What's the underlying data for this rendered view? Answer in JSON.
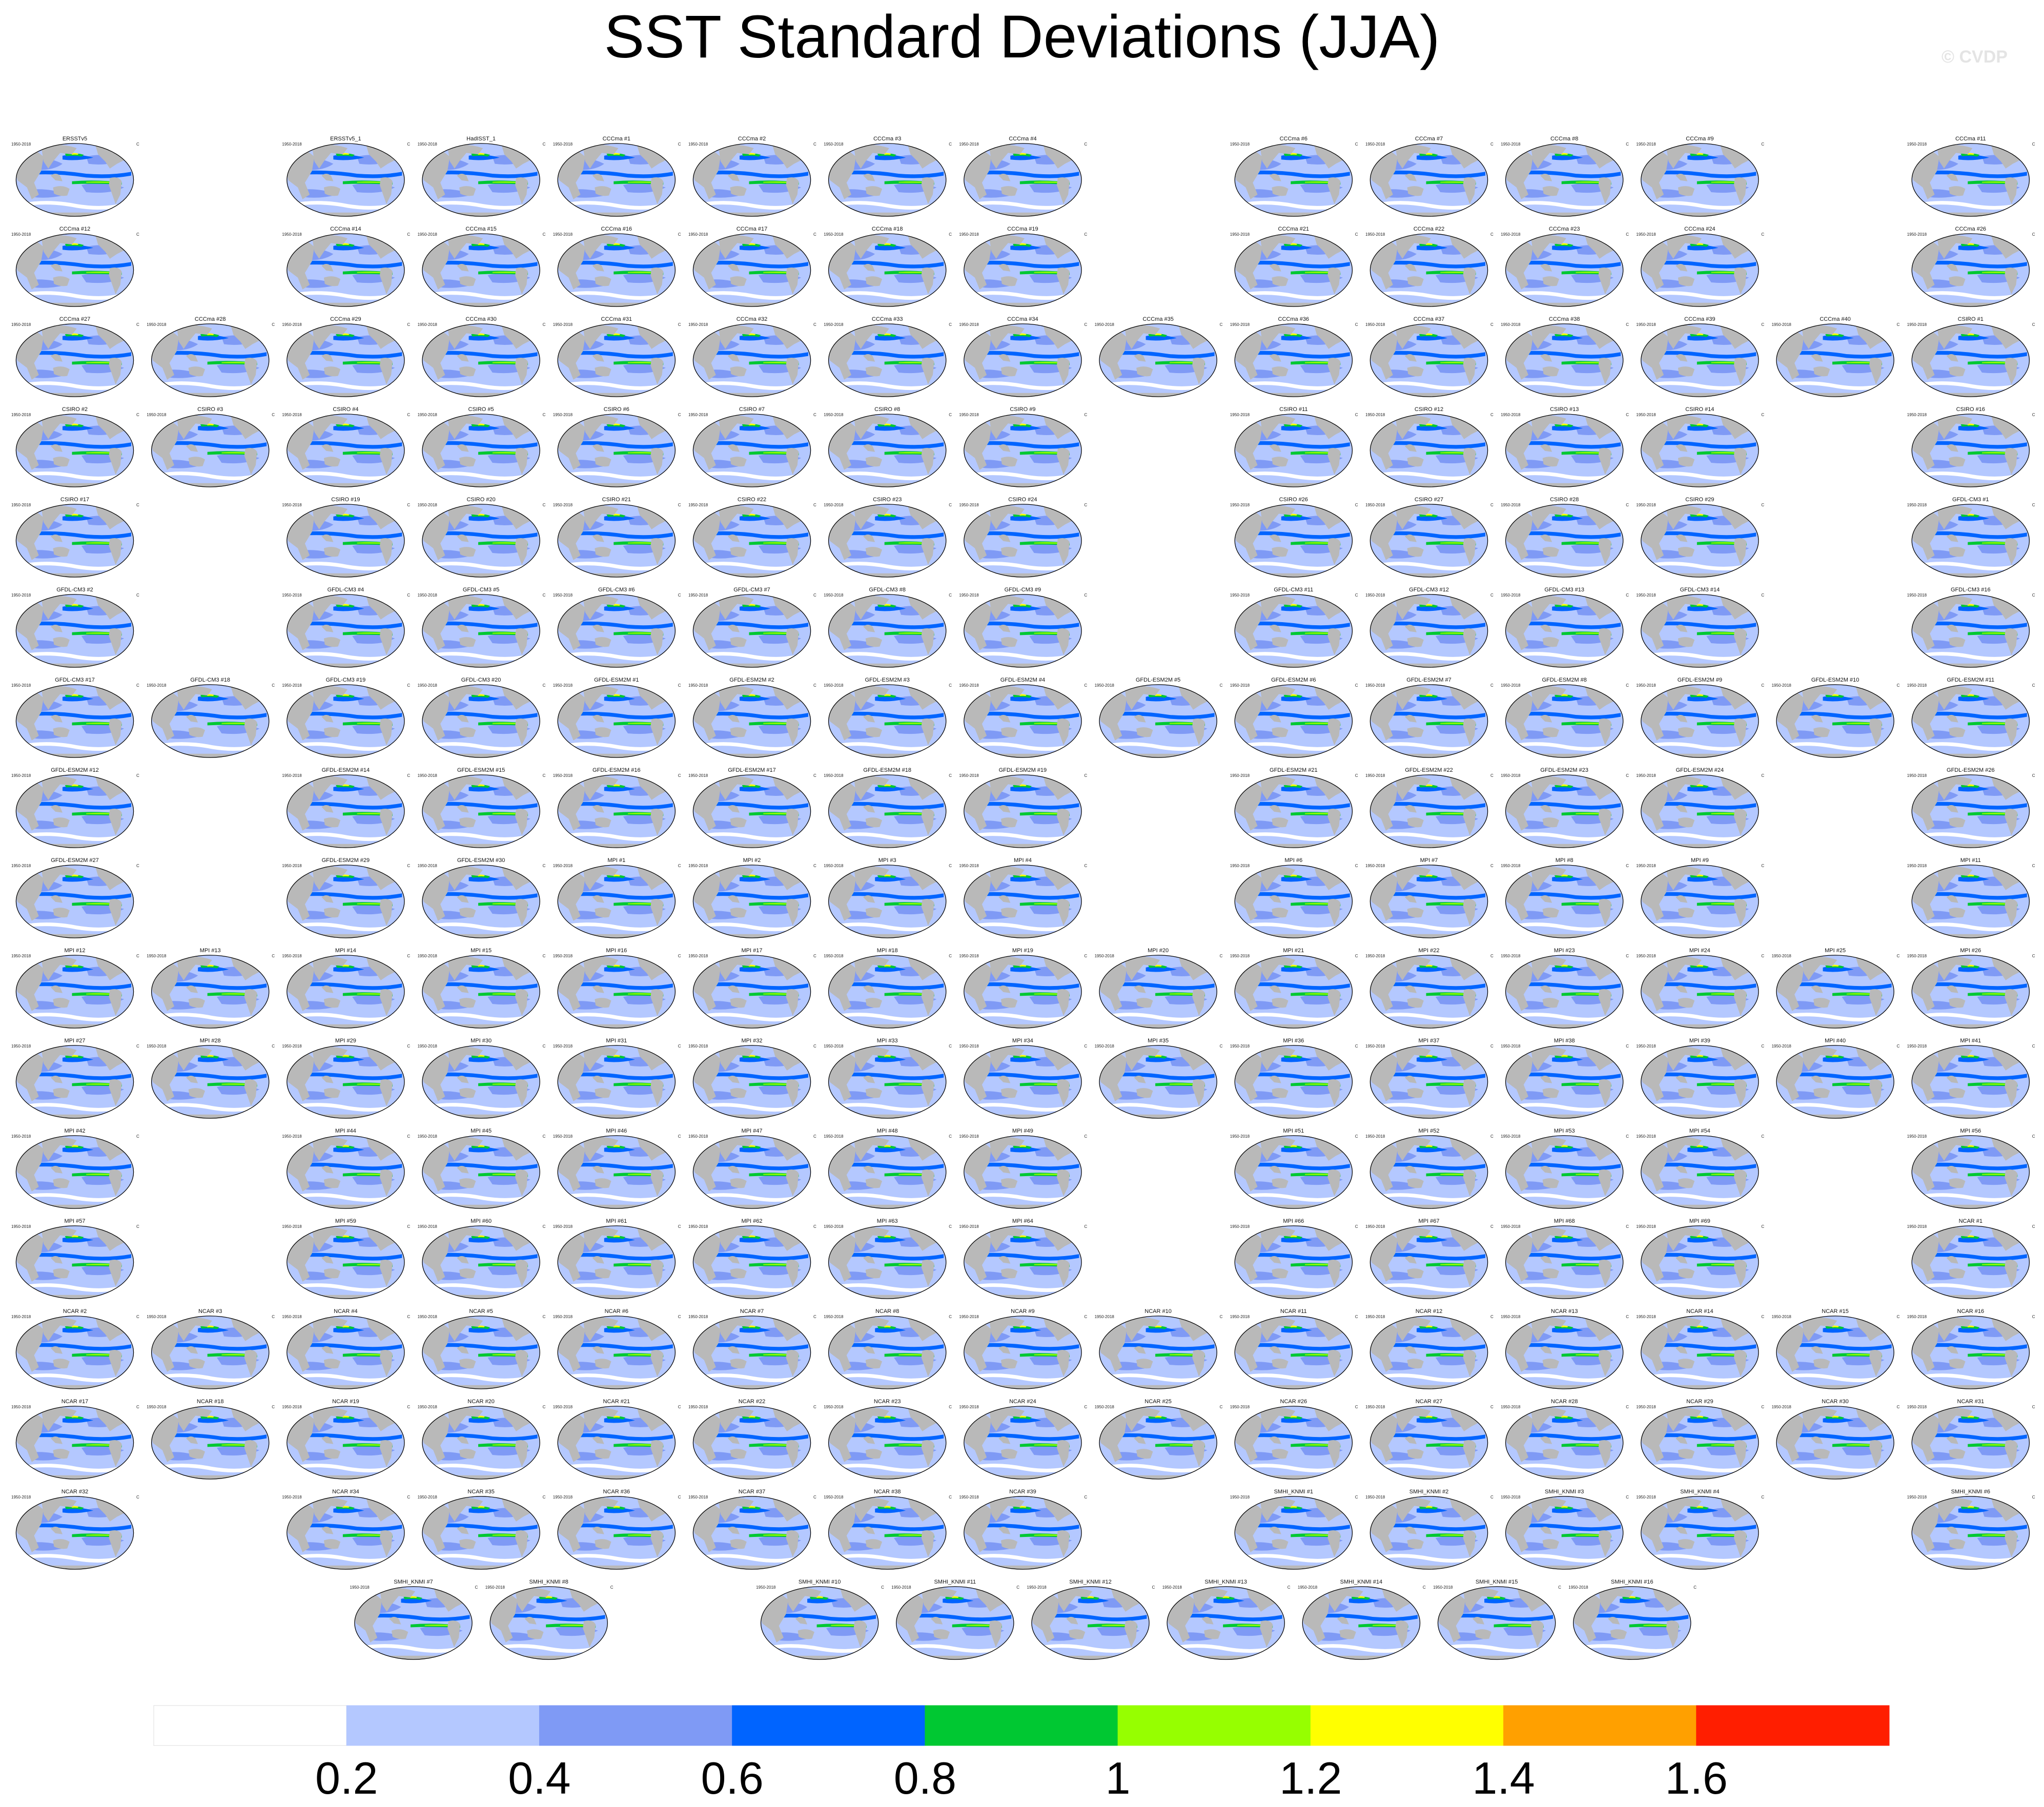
{
  "title": "SST Standard Deviations (JJA)",
  "watermark": "© CVDP",
  "chart_data": {
    "type": "heatmap",
    "title": "SST Standard Deviations (JJA)",
    "projection": "global map, Robinson-like ellipse, Pacific-centered",
    "units_label": "C",
    "panel_grid": {
      "columns": 15,
      "rows": [
        [
          0,
          2,
          3,
          4,
          5,
          6,
          7,
          9,
          10,
          11,
          12,
          14
        ],
        [
          0,
          2,
          3,
          4,
          5,
          6,
          7,
          9,
          10,
          11,
          12,
          14
        ],
        [
          0,
          1,
          2,
          3,
          4,
          5,
          6,
          7,
          8,
          9,
          10,
          11,
          12,
          13,
          14
        ],
        [
          0,
          1,
          2,
          3,
          4,
          5,
          6,
          7,
          9,
          10,
          11,
          12,
          14
        ],
        [
          0,
          2,
          3,
          4,
          5,
          6,
          7,
          9,
          10,
          11,
          12,
          14
        ],
        [
          0,
          2,
          3,
          4,
          5,
          6,
          7,
          9,
          10,
          11,
          12,
          14
        ],
        [
          0,
          1,
          2,
          3,
          4,
          5,
          6,
          7,
          8,
          9,
          10,
          11,
          12,
          13,
          14
        ],
        [
          0,
          2,
          3,
          4,
          5,
          6,
          7,
          9,
          10,
          11,
          12,
          14
        ],
        [
          0,
          2,
          3,
          4,
          5,
          6,
          7,
          9,
          10,
          11,
          12,
          14
        ],
        [
          0,
          1,
          2,
          3,
          4,
          5,
          6,
          7,
          8,
          9,
          10,
          11,
          12,
          13,
          14
        ],
        [
          0,
          1,
          2,
          3,
          4,
          5,
          6,
          7,
          8,
          9,
          10,
          11,
          12,
          13,
          14
        ],
        [
          0,
          2,
          3,
          4,
          5,
          6,
          7,
          9,
          10,
          11,
          12,
          14
        ],
        [
          0,
          2,
          3,
          4,
          5,
          6,
          7,
          9,
          10,
          11,
          12,
          14
        ],
        [
          0,
          1,
          2,
          3,
          4,
          5,
          6,
          7,
          8,
          9,
          10,
          11,
          12,
          13,
          14
        ],
        [
          0,
          1,
          2,
          3,
          4,
          5,
          6,
          7,
          8,
          9,
          10,
          11,
          12,
          13,
          14
        ],
        [
          0,
          2,
          3,
          4,
          5,
          6,
          7,
          9,
          10,
          11,
          12,
          14
        ],
        [
          2.5,
          3.5,
          5.5,
          6.5,
          7.5,
          8.5,
          9.5,
          10.5,
          11.5
        ]
      ]
    },
    "panels": [
      "ERSSTv5",
      "ERSSTv5_1",
      "HadISST_1",
      "CCCma #1",
      "CCCma #2",
      "CCCma #3",
      "CCCma #4",
      "CCCma #6",
      "CCCma #7",
      "CCCma #8",
      "CCCma #9",
      "CCCma #11",
      "CCCma #12",
      "CCCma #14",
      "CCCma #15",
      "CCCma #16",
      "CCCma #17",
      "CCCma #18",
      "CCCma #19",
      "CCCma #21",
      "CCCma #22",
      "CCCma #23",
      "CCCma #24",
      "CCCma #26",
      "CCCma #27",
      "CCCma #28",
      "CCCma #29",
      "CCCma #30",
      "CCCma #31",
      "CCCma #32",
      "CCCma #33",
      "CCCma #34",
      "CCCma #35",
      "CCCma #36",
      "CCCma #37",
      "CCCma #38",
      "CCCma #39",
      "CCCma #40",
      "CSIRO #1",
      "CSIRO #2",
      "CSIRO #3",
      "CSIRO #4",
      "CSIRO #5",
      "CSIRO #6",
      "CSIRO #7",
      "CSIRO #8",
      "CSIRO #9",
      "CSIRO #11",
      "CSIRO #12",
      "CSIRO #13",
      "CSIRO #14",
      "CSIRO #16",
      "CSIRO #17",
      "CSIRO #19",
      "CSIRO #20",
      "CSIRO #21",
      "CSIRO #22",
      "CSIRO #23",
      "CSIRO #24",
      "CSIRO #26",
      "CSIRO #27",
      "CSIRO #28",
      "CSIRO #29",
      "GFDL-CM3 #1",
      "GFDL-CM3 #2",
      "GFDL-CM3 #4",
      "GFDL-CM3 #5",
      "GFDL-CM3 #6",
      "GFDL-CM3 #7",
      "GFDL-CM3 #8",
      "GFDL-CM3 #9",
      "GFDL-CM3 #11",
      "GFDL-CM3 #12",
      "GFDL-CM3 #13",
      "GFDL-CM3 #14",
      "GFDL-CM3 #16",
      "GFDL-CM3 #17",
      "GFDL-CM3 #18",
      "GFDL-CM3 #19",
      "GFDL-CM3 #20",
      "GFDL-ESM2M #1",
      "GFDL-ESM2M #2",
      "GFDL-ESM2M #3",
      "GFDL-ESM2M #4",
      "GFDL-ESM2M #5",
      "GFDL-ESM2M #6",
      "GFDL-ESM2M #7",
      "GFDL-ESM2M #8",
      "GFDL-ESM2M #9",
      "GFDL-ESM2M #10",
      "GFDL-ESM2M #11",
      "GFDL-ESM2M #12",
      "GFDL-ESM2M #14",
      "GFDL-ESM2M #15",
      "GFDL-ESM2M #16",
      "GFDL-ESM2M #17",
      "GFDL-ESM2M #18",
      "GFDL-ESM2M #19",
      "GFDL-ESM2M #21",
      "GFDL-ESM2M #22",
      "GFDL-ESM2M #23",
      "GFDL-ESM2M #24",
      "GFDL-ESM2M #26",
      "GFDL-ESM2M #27",
      "GFDL-ESM2M #29",
      "GFDL-ESM2M #30",
      "MPI #1",
      "MPI #2",
      "MPI #3",
      "MPI #4",
      "MPI #6",
      "MPI #7",
      "MPI #8",
      "MPI #9",
      "MPI #11",
      "MPI #12",
      "MPI #13",
      "MPI #14",
      "MPI #15",
      "MPI #16",
      "MPI #17",
      "MPI #18",
      "MPI #19",
      "MPI #20",
      "MPI #21",
      "MPI #22",
      "MPI #23",
      "MPI #24",
      "MPI #25",
      "MPI #26",
      "MPI #27",
      "MPI #28",
      "MPI #29",
      "MPI #30",
      "MPI #31",
      "MPI #32",
      "MPI #33",
      "MPI #34",
      "MPI #35",
      "MPI #36",
      "MPI #37",
      "MPI #38",
      "MPI #39",
      "MPI #40",
      "MPI #41",
      "MPI #42",
      "MPI #44",
      "MPI #45",
      "MPI #46",
      "MPI #47",
      "MPI #48",
      "MPI #49",
      "MPI #51",
      "MPI #52",
      "MPI #53",
      "MPI #54",
      "MPI #56",
      "MPI #57",
      "MPI #59",
      "MPI #60",
      "MPI #61",
      "MPI #62",
      "MPI #63",
      "MPI #64",
      "MPI #66",
      "MPI #67",
      "MPI #68",
      "MPI #69",
      "NCAR #1",
      "NCAR #2",
      "NCAR #3",
      "NCAR #4",
      "NCAR #5",
      "NCAR #6",
      "NCAR #7",
      "NCAR #8",
      "NCAR #9",
      "NCAR #10",
      "NCAR #11",
      "NCAR #12",
      "NCAR #13",
      "NCAR #14",
      "NCAR #15",
      "NCAR #16",
      "NCAR #17",
      "NCAR #18",
      "NCAR #19",
      "NCAR #20",
      "NCAR #21",
      "NCAR #22",
      "NCAR #23",
      "NCAR #24",
      "NCAR #25",
      "NCAR #26",
      "NCAR #27",
      "NCAR #28",
      "NCAR #29",
      "NCAR #30",
      "NCAR #31",
      "NCAR #32",
      "NCAR #34",
      "NCAR #35",
      "NCAR #36",
      "NCAR #37",
      "NCAR #38",
      "NCAR #39",
      "SMHI_KNMI #1",
      "SMHI_KNMI #2",
      "SMHI_KNMI #3",
      "SMHI_KNMI #4",
      "SMHI_KNMI #6",
      "SMHI_KNMI #7",
      "SMHI_KNMI #8",
      "SMHI_KNMI #10",
      "SMHI_KNMI #11",
      "SMHI_KNMI #12",
      "SMHI_KNMI #13",
      "SMHI_KNMI #14",
      "SMHI_KNMI #15",
      "SMHI_KNMI #16"
    ],
    "panel_period": "1950-2018",
    "colorbar": {
      "colors": [
        "#ffffff",
        "#b4c8ff",
        "#7f9af5",
        "#0064ff",
        "#00c832",
        "#96ff00",
        "#ffff00",
        "#ffa000",
        "#ff1e00"
      ],
      "tick_labels": [
        "0.2",
        "0.4",
        "0.6",
        "0.8",
        "1",
        "1.2",
        "1.4",
        "1.6"
      ]
    }
  }
}
